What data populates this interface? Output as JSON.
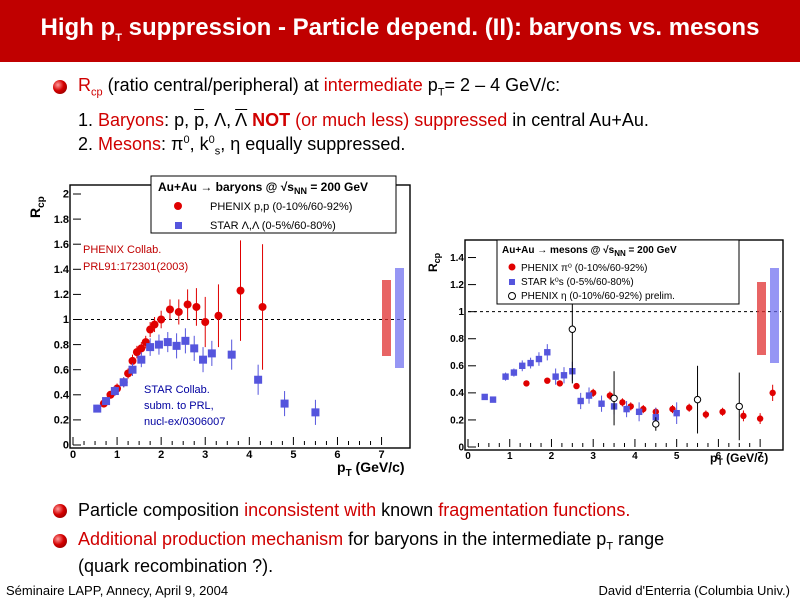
{
  "title": {
    "main": "High p",
    "sub": "T",
    "rest": " suppression - Particle depend. (II): baryons vs. mesons"
  },
  "intro": {
    "r": "R",
    "r_sub": "cp",
    "t1": " (ratio central/peripheral) at ",
    "t2": "intermediate",
    "t3": " p",
    "t3_sub": "T",
    "t4": "= 2 – 4 GeV/c:"
  },
  "item1": {
    "num": "1. ",
    "label": "Baryons",
    "t1": ":  p, ",
    "pbar": "p",
    "t2": ", Λ, ",
    "lbar": "Λ",
    "not": " NOT",
    "t3": " (or much less) suppressed",
    "t4": " in central Au+Au."
  },
  "item2": {
    "num": "2. ",
    "label": "Mesons",
    "t1": ":  π",
    "pi_sup": "0",
    "t2": ", k",
    "k_sup": "0",
    "k_sub": "s",
    "t3": ", η   equally suppressed."
  },
  "bullet2": {
    "t1": "Particle composition ",
    "t2": "inconsistent with",
    "t3": " known ",
    "t4": "fragmentation functions."
  },
  "bullet3": {
    "t1": "Additional production mechanism",
    "t2": " for baryons in the intermediate p",
    "t2_sub": "T",
    "t3": " range",
    "t4": "(quark recombination ?)."
  },
  "footer": {
    "left": "Séminaire LAPP, Annecy, April 9, 2004",
    "right": "David d'Enterria (Columbia Univ.)"
  },
  "colors": {
    "title_bg": "#c00000",
    "accent": "#d00000",
    "phenix": "#e00000",
    "star": "#5555dd"
  },
  "chart_data": [
    {
      "type": "scatter",
      "ylabel": "R",
      "ylabel_sub": "cp",
      "xlabel": "p",
      "xlabel_sub": "T",
      "xlabel_rest": " (GeV/c)",
      "xlim": [
        0,
        7.6
      ],
      "ylim": [
        0,
        2
      ],
      "xticks": [
        "0",
        "1",
        "2",
        "3",
        "4",
        "5",
        "6",
        "7"
      ],
      "yticks": [
        "0",
        "0.2",
        "0.4",
        "0.6",
        "0.8",
        "1",
        "1.2",
        "1.4",
        "1.6",
        "1.8",
        "2"
      ],
      "legend_title": "Au+Au → baryons @ √s",
      "legend_title_sub": "NN",
      "legend_title_rest": " = 200 GeV",
      "ann_phenix": [
        "PHENIX Collab.",
        "PRL91:172301(2003)"
      ],
      "ann_star": [
        "STAR Collab.",
        "subm. to PRL,",
        "nucl-ex/0306007"
      ],
      "series": [
        {
          "name": "PHENIX p,p (0-10%/60-92%)",
          "marker": "circle",
          "color": "#e00000",
          "x": [
            0.7,
            0.85,
            1.0,
            1.15,
            1.25,
            1.35,
            1.45,
            1.55,
            1.65,
            1.75,
            1.85,
            2.0,
            2.2,
            2.4,
            2.6,
            2.8,
            3.0,
            3.3,
            3.8,
            4.3
          ],
          "y": [
            0.33,
            0.4,
            0.45,
            0.5,
            0.57,
            0.67,
            0.74,
            0.77,
            0.82,
            0.92,
            0.96,
            1.0,
            1.08,
            1.06,
            1.12,
            1.1,
            0.98,
            1.03,
            1.23,
            1.1
          ],
          "err": [
            0.03,
            0.03,
            0.04,
            0.04,
            0.04,
            0.05,
            0.05,
            0.05,
            0.05,
            0.06,
            0.06,
            0.07,
            0.08,
            0.1,
            0.12,
            0.15,
            0.2,
            0.25,
            0.4,
            0.5
          ]
        },
        {
          "name": "STAR Λ,Λ (0-5%/60-80%)",
          "marker": "square",
          "color": "#5555dd",
          "x": [
            0.55,
            0.75,
            0.95,
            1.15,
            1.35,
            1.55,
            1.75,
            1.95,
            2.15,
            2.35,
            2.55,
            2.75,
            2.95,
            3.15,
            3.6,
            4.2,
            4.8,
            5.5
          ],
          "y": [
            0.29,
            0.35,
            0.43,
            0.5,
            0.6,
            0.68,
            0.78,
            0.8,
            0.82,
            0.79,
            0.83,
            0.77,
            0.68,
            0.73,
            0.72,
            0.52,
            0.33,
            0.26
          ],
          "err": [
            0.03,
            0.03,
            0.04,
            0.04,
            0.05,
            0.06,
            0.07,
            0.08,
            0.08,
            0.1,
            0.1,
            0.1,
            0.1,
            0.1,
            0.12,
            0.12,
            0.1,
            0.1
          ]
        }
      ]
    },
    {
      "type": "scatter",
      "ylabel": "R",
      "ylabel_sub": "cp",
      "xlabel": "p",
      "xlabel_sub": "T",
      "xlabel_rest": " (GeV/c)",
      "xlim": [
        0,
        7.5
      ],
      "ylim": [
        0,
        1.5
      ],
      "xticks": [
        "0",
        "1",
        "2",
        "3",
        "4",
        "5",
        "6",
        "7"
      ],
      "yticks": [
        "0",
        "0.2",
        "0.4",
        "0.6",
        "0.8",
        "1",
        "1.2",
        "1.4"
      ],
      "legend_title": "Au+Au  → mesons @ √s",
      "legend_title_sub": "NN",
      "legend_title_rest": " = 200 GeV",
      "series": [
        {
          "name": "PHENIX  π⁰ (0-10%/60-92%)",
          "marker": "circle",
          "color": "#e00000",
          "x": [
            1.4,
            1.9,
            2.2,
            2.6,
            3.0,
            3.4,
            3.7,
            3.9,
            4.2,
            4.5,
            4.9,
            5.3,
            5.7,
            6.1,
            6.6,
            7.0,
            7.3
          ],
          "y": [
            0.47,
            0.49,
            0.47,
            0.45,
            0.4,
            0.38,
            0.33,
            0.3,
            0.28,
            0.26,
            0.28,
            0.29,
            0.24,
            0.26,
            0.23,
            0.21,
            0.4
          ],
          "err": [
            0.02,
            0.02,
            0.02,
            0.02,
            0.03,
            0.03,
            0.03,
            0.03,
            0.03,
            0.03,
            0.03,
            0.03,
            0.03,
            0.03,
            0.04,
            0.04,
            0.06
          ]
        },
        {
          "name": "STAR k⁰s (0-5%/60-80%)",
          "marker": "square",
          "color": "#5555dd",
          "x": [
            0.4,
            0.6,
            0.9,
            1.1,
            1.3,
            1.5,
            1.7,
            1.9,
            2.1,
            2.3,
            2.5,
            2.7,
            2.9,
            3.2,
            3.5,
            3.8,
            4.1,
            4.5,
            5.0
          ],
          "y": [
            0.37,
            0.35,
            0.52,
            0.55,
            0.6,
            0.62,
            0.65,
            0.7,
            0.52,
            0.53,
            0.56,
            0.34,
            0.38,
            0.32,
            0.3,
            0.28,
            0.26,
            0.22,
            0.25
          ],
          "err": [
            0.02,
            0.02,
            0.03,
            0.03,
            0.04,
            0.04,
            0.05,
            0.06,
            0.06,
            0.06,
            0.07,
            0.06,
            0.06,
            0.06,
            0.06,
            0.06,
            0.07,
            0.07,
            0.08
          ]
        },
        {
          "name": "PHENIX  η (0-10%/60-92%) prelim.",
          "marker": "open",
          "color": "#000000",
          "x": [
            2.5,
            3.5,
            4.5,
            5.5,
            6.5
          ],
          "y": [
            0.87,
            0.36,
            0.17,
            0.35,
            0.3
          ],
          "err": [
            0.4,
            0.2,
            0.05,
            0.25,
            0.25
          ]
        }
      ]
    }
  ]
}
